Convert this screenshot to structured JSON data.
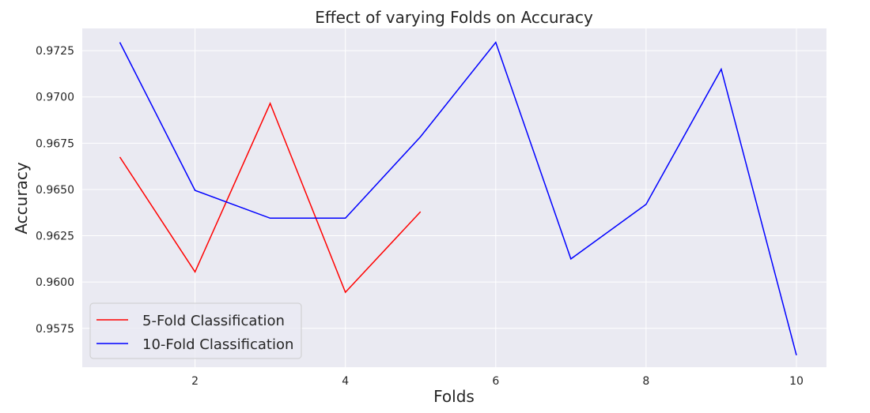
{
  "chart_data": {
    "type": "line",
    "title": "Effect of varying Folds on Accuracy",
    "xlabel": "Folds",
    "ylabel": "Accuracy",
    "xlim": [
      0.5,
      10.4
    ],
    "ylim": [
      0.9554,
      0.9737
    ],
    "x_ticks": [
      2,
      4,
      6,
      8,
      10
    ],
    "x_tick_labels": [
      "2",
      "4",
      "6",
      "8",
      "10"
    ],
    "y_ticks": [
      0.9575,
      0.96,
      0.9625,
      0.965,
      0.9675,
      0.97,
      0.9725
    ],
    "y_tick_labels": [
      "0.9575",
      "0.9600",
      "0.9625",
      "0.9650",
      "0.9675",
      "0.9700",
      "0.9725"
    ],
    "grid": true,
    "legend_position": "lower-left",
    "series": [
      {
        "name": "5-Fold Classification",
        "color": "#ff0000",
        "x": [
          1,
          2,
          3,
          4,
          5
        ],
        "y": [
          0.96675,
          0.96055,
          0.96965,
          0.95945,
          0.9638
        ]
      },
      {
        "name": "10-Fold Classification",
        "color": "#0000ff",
        "x": [
          1,
          2,
          3,
          4,
          5,
          6,
          7,
          8,
          9,
          10
        ],
        "y": [
          0.97295,
          0.96495,
          0.96345,
          0.96345,
          0.96785,
          0.97295,
          0.96125,
          0.9642,
          0.9715,
          0.95605
        ]
      }
    ]
  }
}
